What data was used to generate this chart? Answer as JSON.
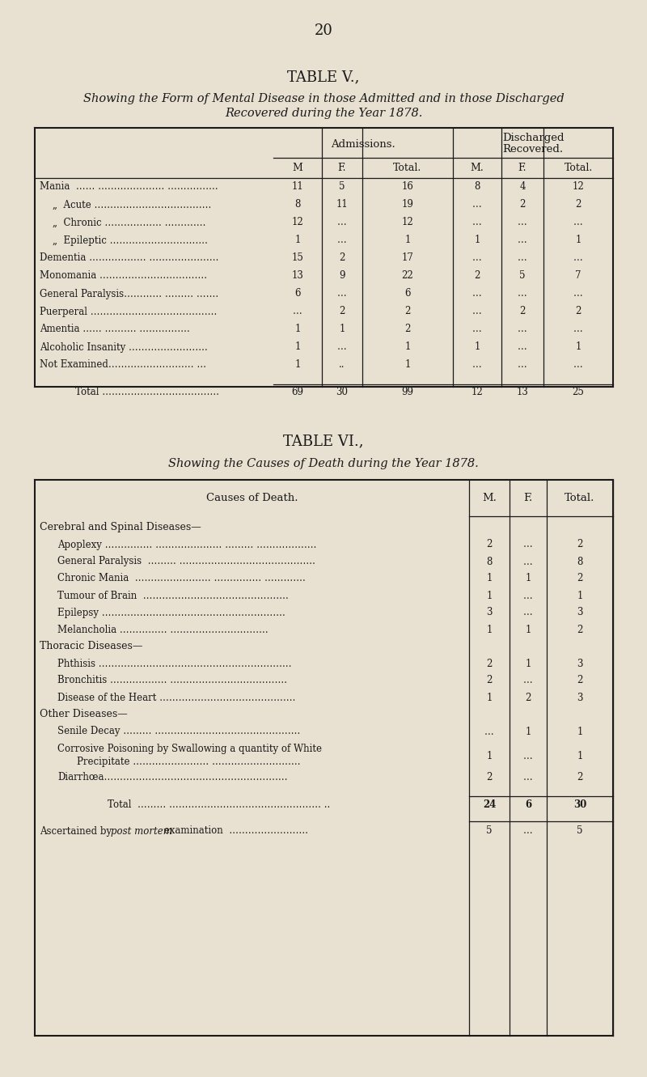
{
  "bg_color": "#e8e0d0",
  "page_number": "20",
  "table5": {
    "title": "TABLE V.,",
    "subtitle_line1": "Showing the Form of Mental Disease in those Admitted and in those Discharged",
    "subtitle_line2": "Recovered during the Year 1878.",
    "col_headers": [
      "M",
      "F.",
      "Total.",
      "M.",
      "F.",
      "Total."
    ],
    "rows": [
      {
        "label": "Mania  …… ………………… …………….",
        "indent": 0,
        "vals": [
          "11",
          "5",
          "16",
          "8",
          "4",
          "12"
        ]
      },
      {
        "label": "„  Acute ……………………………….",
        "indent": 1,
        "vals": [
          "8",
          "11",
          "19",
          "…",
          "2",
          "2"
        ]
      },
      {
        "label": "„  Chronic ……………… ………….",
        "indent": 1,
        "vals": [
          "12",
          "…",
          "12",
          "…",
          "…",
          "…"
        ]
      },
      {
        "label": "„  Epileptic ………………………….",
        "indent": 1,
        "vals": [
          "1",
          "…",
          "1",
          "1",
          "…",
          "1"
        ]
      },
      {
        "label": "Dementia ……………… ………………….",
        "indent": 0,
        "vals": [
          "15",
          "2",
          "17",
          "…",
          "…",
          "…"
        ]
      },
      {
        "label": "Monomania …………………………….",
        "indent": 0,
        "vals": [
          "13",
          "9",
          "22",
          "2",
          "5",
          "7"
        ]
      },
      {
        "label": "General Paralysis………… ……… …….",
        "indent": 0,
        "vals": [
          "6",
          "…",
          "6",
          "…",
          "…",
          "…"
        ]
      },
      {
        "label": "Puerperal ………………………………….",
        "indent": 0,
        "vals": [
          "…",
          "2",
          "2",
          "…",
          "2",
          "2"
        ]
      },
      {
        "label": "Amentia …… ………. …………….",
        "indent": 0,
        "vals": [
          "1",
          "1",
          "2",
          "…",
          "…",
          "…"
        ]
      },
      {
        "label": "Alcoholic Insanity …………………….",
        "indent": 0,
        "vals": [
          "1",
          "…",
          "1",
          "1",
          "…",
          "1"
        ]
      },
      {
        "label": "Not Examined……………………… …",
        "indent": 0,
        "vals": [
          "1",
          "..",
          "1",
          "…",
          "…",
          "…"
        ]
      }
    ],
    "total_label": "Total ……………………………….",
    "total_vals": [
      "69",
      "30",
      "99",
      "12",
      "13",
      "25"
    ]
  },
  "table6": {
    "title": "TABLE VI.,",
    "subtitle": "Showing the Causes of Death during the Year 1878.",
    "sections": [
      {
        "header": "Cerebral and Spinal Diseases—",
        "rows": [
          {
            "label": "Apoplexy …………… ………………… ……… ……………….",
            "vals": [
              "2",
              "…",
              "2"
            ]
          },
          {
            "label": "General Paralysis  ……… …………………………………….",
            "vals": [
              "8",
              "…",
              "8"
            ]
          },
          {
            "label": "Chronic Mania  …………………… …………… ………….",
            "vals": [
              "1",
              "1",
              "2"
            ]
          },
          {
            "label": "Tumour of Brain  ……………………………………….",
            "vals": [
              "1",
              "…",
              "1"
            ]
          },
          {
            "label": "Epilepsy ………………………………………………….",
            "vals": [
              "3",
              "…",
              "3"
            ]
          },
          {
            "label": "Melancholia …………… ………………………….",
            "vals": [
              "1",
              "1",
              "2"
            ]
          }
        ]
      },
      {
        "header": "Thoracic Diseases—",
        "rows": [
          {
            "label": "Phthisis …………………………………………………….",
            "vals": [
              "2",
              "1",
              "3"
            ]
          },
          {
            "label": "Bronchitis ……………… ……………………………….",
            "vals": [
              "2",
              "…",
              "2"
            ]
          },
          {
            "label": "Disease of the Heart …………………………………….",
            "vals": [
              "1",
              "2",
              "3"
            ]
          }
        ]
      },
      {
        "header": "Other Diseases—",
        "rows": [
          {
            "label": "Senile Decay ……… ……………………………………….",
            "vals": [
              "…",
              "1",
              "1"
            ]
          },
          {
            "label": "Corrosive Poisoning by Swallowing a quantity of White\n    Precipitate …………………… ……………………….",
            "vals": [
              "1",
              "…",
              "1"
            ]
          },
          {
            "label": "Diarrhœa………………………………………………….",
            "vals": [
              "2",
              "…",
              "2"
            ]
          }
        ]
      }
    ],
    "total_label": "Total  ……… ………………………………………… ..",
    "total_vals": [
      "24",
      "6",
      "30"
    ],
    "pm_vals": [
      "5",
      "…",
      "5"
    ]
  }
}
